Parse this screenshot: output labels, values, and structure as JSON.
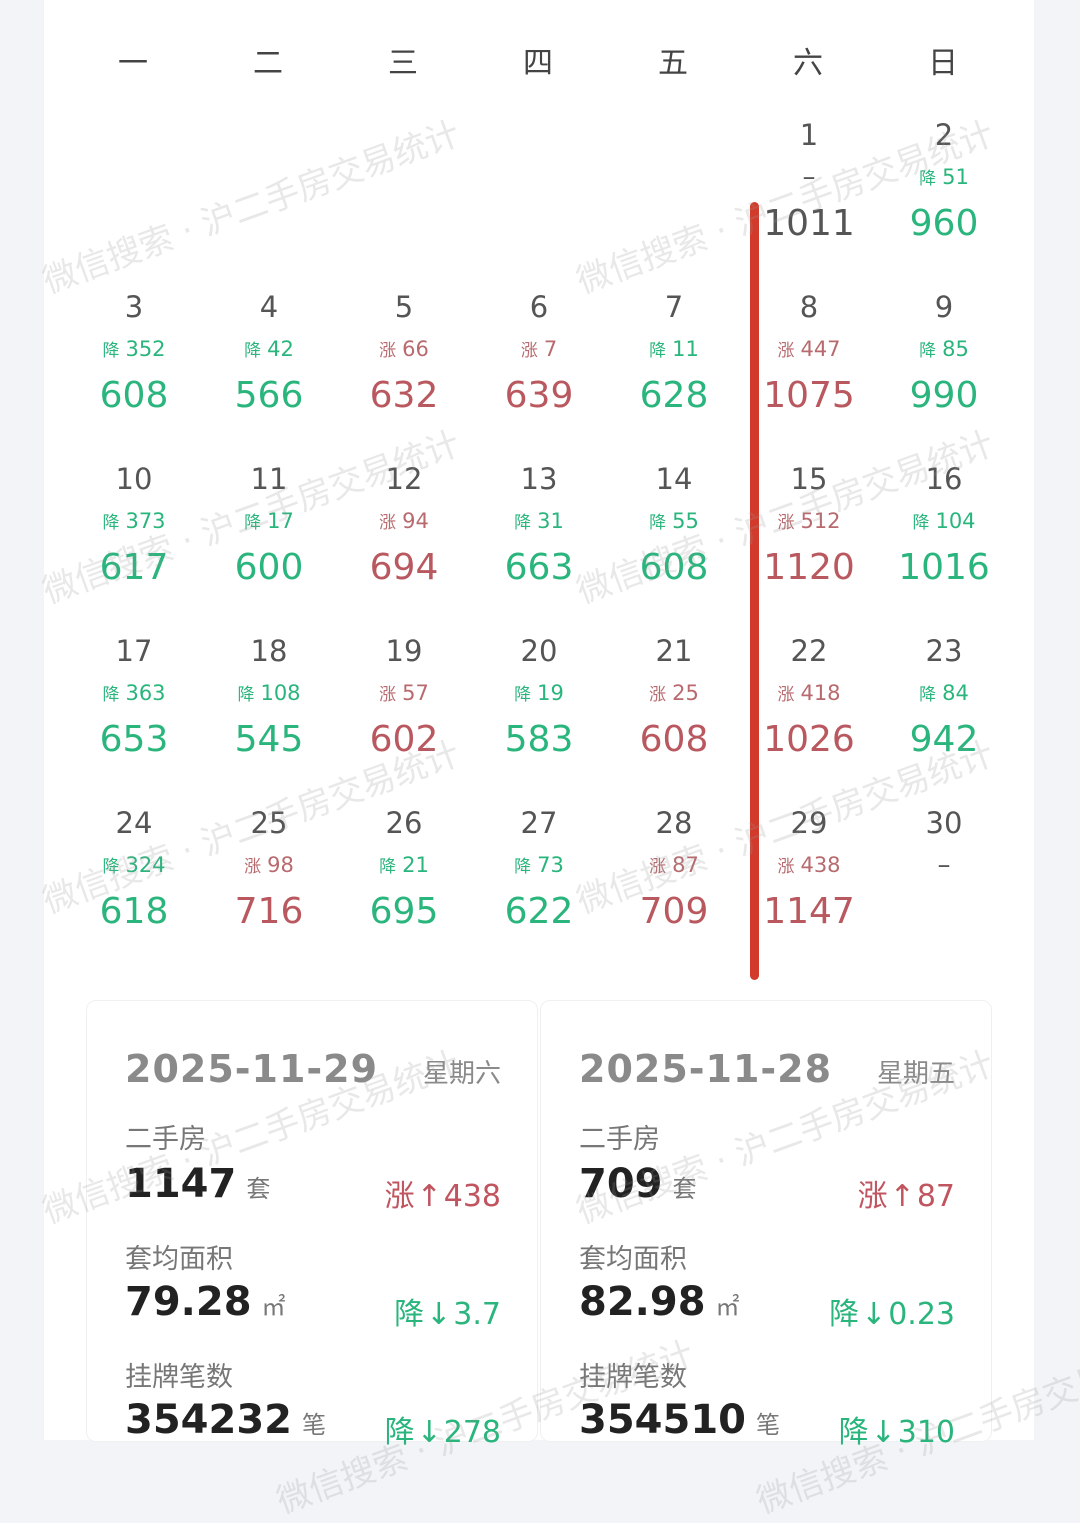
{
  "weekdays": [
    "一",
    "二",
    "三",
    "四",
    "五",
    "六",
    "日"
  ],
  "down_tag": "降",
  "up_tag": "涨",
  "flat_mark": "–",
  "days": [
    {
      "day": "1",
      "col": 5,
      "row": 0,
      "dir": "flat",
      "change": "",
      "count": "1011"
    },
    {
      "day": "2",
      "col": 6,
      "row": 0,
      "dir": "down",
      "change": "51",
      "count": "960"
    },
    {
      "day": "3",
      "col": 0,
      "row": 1,
      "dir": "down",
      "change": "352",
      "count": "608"
    },
    {
      "day": "4",
      "col": 1,
      "row": 1,
      "dir": "down",
      "change": "42",
      "count": "566"
    },
    {
      "day": "5",
      "col": 2,
      "row": 1,
      "dir": "up",
      "change": "66",
      "count": "632"
    },
    {
      "day": "6",
      "col": 3,
      "row": 1,
      "dir": "up",
      "change": "7",
      "count": "639"
    },
    {
      "day": "7",
      "col": 4,
      "row": 1,
      "dir": "down",
      "change": "11",
      "count": "628"
    },
    {
      "day": "8",
      "col": 5,
      "row": 1,
      "dir": "up",
      "change": "447",
      "count": "1075"
    },
    {
      "day": "9",
      "col": 6,
      "row": 1,
      "dir": "down",
      "change": "85",
      "count": "990"
    },
    {
      "day": "10",
      "col": 0,
      "row": 2,
      "dir": "down",
      "change": "373",
      "count": "617"
    },
    {
      "day": "11",
      "col": 1,
      "row": 2,
      "dir": "down",
      "change": "17",
      "count": "600"
    },
    {
      "day": "12",
      "col": 2,
      "row": 2,
      "dir": "up",
      "change": "94",
      "count": "694"
    },
    {
      "day": "13",
      "col": 3,
      "row": 2,
      "dir": "down",
      "change": "31",
      "count": "663"
    },
    {
      "day": "14",
      "col": 4,
      "row": 2,
      "dir": "down",
      "change": "55",
      "count": "608"
    },
    {
      "day": "15",
      "col": 5,
      "row": 2,
      "dir": "up",
      "change": "512",
      "count": "1120"
    },
    {
      "day": "16",
      "col": 6,
      "row": 2,
      "dir": "down",
      "change": "104",
      "count": "1016"
    },
    {
      "day": "17",
      "col": 0,
      "row": 3,
      "dir": "down",
      "change": "363",
      "count": "653"
    },
    {
      "day": "18",
      "col": 1,
      "row": 3,
      "dir": "down",
      "change": "108",
      "count": "545"
    },
    {
      "day": "19",
      "col": 2,
      "row": 3,
      "dir": "up",
      "change": "57",
      "count": "602"
    },
    {
      "day": "20",
      "col": 3,
      "row": 3,
      "dir": "down",
      "change": "19",
      "count": "583"
    },
    {
      "day": "21",
      "col": 4,
      "row": 3,
      "dir": "up",
      "change": "25",
      "count": "608"
    },
    {
      "day": "22",
      "col": 5,
      "row": 3,
      "dir": "up",
      "change": "418",
      "count": "1026"
    },
    {
      "day": "23",
      "col": 6,
      "row": 3,
      "dir": "down",
      "change": "84",
      "count": "942"
    },
    {
      "day": "24",
      "col": 0,
      "row": 4,
      "dir": "down",
      "change": "324",
      "count": "618"
    },
    {
      "day": "25",
      "col": 1,
      "row": 4,
      "dir": "up",
      "change": "98",
      "count": "716"
    },
    {
      "day": "26",
      "col": 2,
      "row": 4,
      "dir": "down",
      "change": "21",
      "count": "695"
    },
    {
      "day": "27",
      "col": 3,
      "row": 4,
      "dir": "down",
      "change": "73",
      "count": "622"
    },
    {
      "day": "28",
      "col": 4,
      "row": 4,
      "dir": "up",
      "change": "87",
      "count": "709"
    },
    {
      "day": "29",
      "col": 5,
      "row": 4,
      "dir": "up",
      "change": "438",
      "count": "1147"
    },
    {
      "day": "30",
      "col": 6,
      "row": 4,
      "dir": "flat",
      "change": "",
      "count": ""
    }
  ],
  "panels": [
    {
      "date": "2025-11-29",
      "weekday": "星期六",
      "homes_label": "二手房",
      "homes_value": "1147",
      "homes_unit": "套",
      "homes_change_dir": "涨",
      "homes_change_arrow": "↑",
      "homes_change_value": "438",
      "area_label": "套均面积",
      "area_value": "79.28",
      "area_unit": "㎡",
      "area_change_dir": "降",
      "area_change_arrow": "↓",
      "area_change_value": "3.7",
      "listing_label": "挂牌笔数",
      "listing_value": "354232",
      "listing_unit": "笔",
      "listing_change_dir": "降",
      "listing_change_arrow": "↓",
      "listing_change_value": "278"
    },
    {
      "date": "2025-11-28",
      "weekday": "星期五",
      "homes_label": "二手房",
      "homes_value": "709",
      "homes_unit": "套",
      "homes_change_dir": "涨",
      "homes_change_arrow": "↑",
      "homes_change_value": "87",
      "area_label": "套均面积",
      "area_value": "82.98",
      "area_unit": "㎡",
      "area_change_dir": "降",
      "area_change_arrow": "↓",
      "area_change_value": "0.23",
      "listing_label": "挂牌笔数",
      "listing_value": "354510",
      "listing_unit": "笔",
      "listing_change_dir": "降",
      "listing_change_arrow": "↓",
      "listing_change_value": "310"
    }
  ],
  "watermark": "微信搜索 · 沪二手房交易统计"
}
